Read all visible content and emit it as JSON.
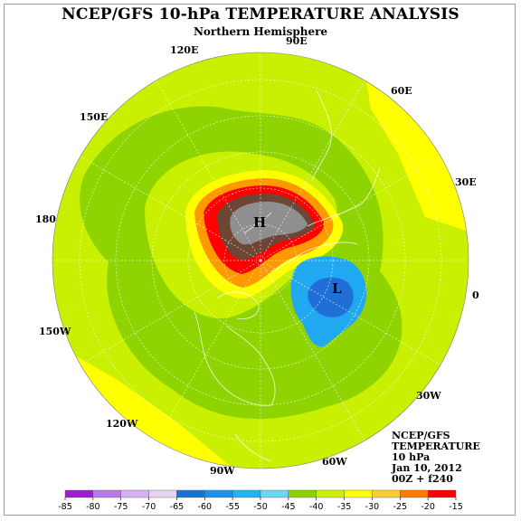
{
  "title": "NCEP/GFS 10-hPa TEMPERATURE ANALYSIS",
  "subtitle": "Northern Hemisphere",
  "longitude_labels": {
    "lon_90e": "90E",
    "lon_120e": "120E",
    "lon_60e": "60E",
    "lon_150e": "150E",
    "lon_30e": "30E",
    "lon_180": "180",
    "lon_0": "0",
    "lon_150w": "150W",
    "lon_30w": "30W",
    "lon_120w": "120W",
    "lon_60w": "60W",
    "lon_90w": "90W"
  },
  "pressure_centers": {
    "high": "H",
    "low": "L"
  },
  "info_block": [
    "NCEP/GFS",
    "TEMPERATURE",
    "10 hPa",
    "Jan 10, 2012",
    "00Z + f240"
  ],
  "colorbar": {
    "ticks": [
      "-85",
      "-80",
      "-75",
      "-70",
      "-65",
      "-60",
      "-55",
      "-50",
      "-45",
      "-40",
      "-35",
      "-30",
      "-25",
      "-20",
      "-15"
    ],
    "colors": [
      "#9a1fcf",
      "#b77ae6",
      "#d8b2f0",
      "#e7d3f3",
      "#1874cd",
      "#1f8fe8",
      "#22b4ef",
      "#6dd6f5",
      "#8bd100",
      "#cef000",
      "#ffff00",
      "#ffcc33",
      "#ff7a00",
      "#ff0000",
      "#7a4a3a",
      "#8c8c8c"
    ]
  },
  "legend_colors": {
    "ocean_like_green": "#a4e000",
    "light_green": "#c8f000",
    "yellow": "#ffff00",
    "orange": "#ff9900",
    "red": "#ff0000",
    "brown": "#6e4636",
    "gray": "#8f8f8f",
    "blue": "#20a8f0",
    "dark_blue": "#1f6fd6",
    "mid_green": "#8fd400"
  }
}
